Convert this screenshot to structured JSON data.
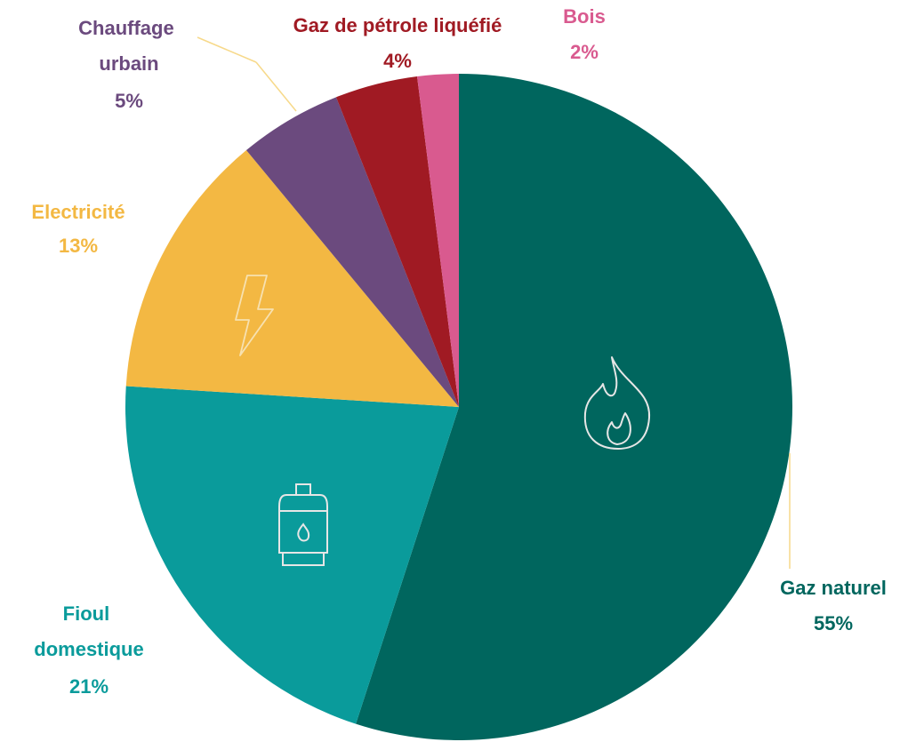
{
  "chart_data": {
    "type": "pie",
    "categories": [
      "Gaz naturel",
      "Fioul domestique",
      "Electricité",
      "Chauffage urbain",
      "Gaz de pétrole liquéfié",
      "Bois"
    ],
    "values": [
      55,
      21,
      13,
      5,
      4,
      2
    ],
    "value_labels": [
      "55%",
      "21%",
      "13%",
      "5%",
      "4%",
      "2%"
    ],
    "colors": [
      "#00665e",
      "#0a9b9b",
      "#f3b843",
      "#6b4a7e",
      "#a01a23",
      "#d95a8f"
    ]
  }
}
